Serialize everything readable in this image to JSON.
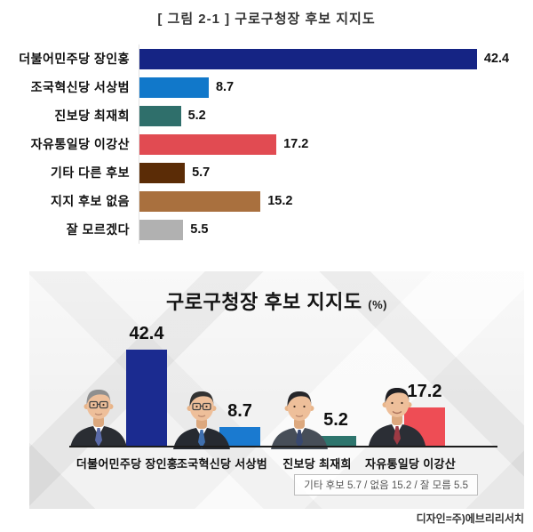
{
  "figure": {
    "caption": "[ 그림 2-1 ] 구로구청장 후보 지지도",
    "credit": "디자인=주)에브리리서치"
  },
  "icons": {
    "portraits": [
      "candidate-portrait-1",
      "candidate-portrait-2",
      "candidate-portrait-3",
      "candidate-portrait-4"
    ]
  },
  "chart_data": [
    {
      "type": "bar",
      "orientation": "horizontal",
      "title": "[ 그림 2-1 ] 구로구청장 후보 지지도",
      "categories": [
        "더불어민주당 장인홍",
        "조국혁신당 서상범",
        "진보당 최재희",
        "자유통일당 이강산",
        "기타 다른 후보",
        "지지 후보 없음",
        "잘 모르겠다"
      ],
      "values": [
        42.4,
        8.7,
        5.2,
        17.2,
        5.7,
        15.2,
        5.5
      ],
      "value_labels": [
        "42.4",
        "8.7",
        "5.2",
        "17.2",
        "5.7",
        "15.2",
        "5.5"
      ],
      "colors": [
        "#152484",
        "#1178ca",
        "#2f6f6b",
        "#e14b52",
        "#5b2c06",
        "#a9703e",
        "#b1b1b1"
      ],
      "xlabel": "",
      "ylabel": "",
      "xlim": [
        0,
        44.6
      ],
      "grid": false,
      "legend": "none"
    },
    {
      "type": "bar",
      "orientation": "vertical",
      "title": "구로구청장 후보 지지도",
      "title_unit": "(%)",
      "categories": [
        "더불어민주당 장인홍",
        "조국혁신당 서상범",
        "진보당 최재희",
        "자유통일당 이강산"
      ],
      "values": [
        42.4,
        8.7,
        5.2,
        17.2
      ],
      "value_labels": [
        "42.4",
        "8.7",
        "5.2",
        "17.2"
      ],
      "colors": [
        "#1b2b90",
        "#1a7ad0",
        "#2e756d",
        "#ee4d55"
      ],
      "footnote": "기타 후보 5.7 / 없음 15.2 / 잘 모름 5.5",
      "credit": "디자인=주)에브리리서치",
      "grid": false,
      "legend": "none"
    }
  ]
}
